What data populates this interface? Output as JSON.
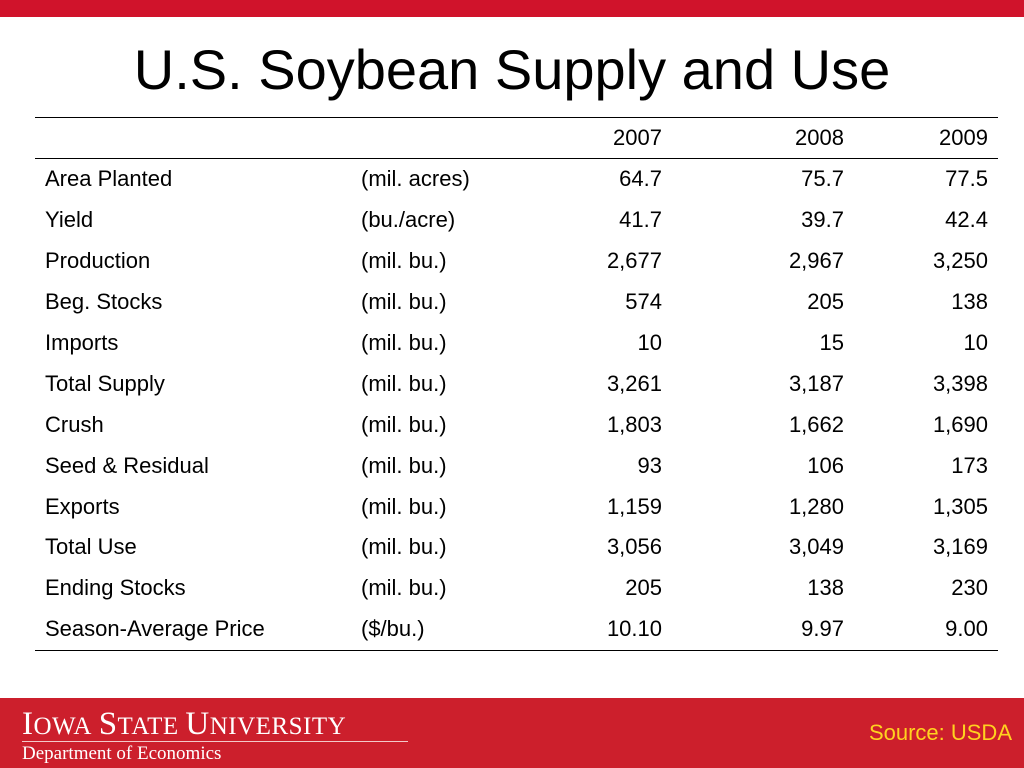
{
  "colors": {
    "brand_red": "#d0132b",
    "footer_red": "#cc1f2c",
    "source_yellow": "#ffd21f"
  },
  "slide": {
    "title": "U.S. Soybean Supply and Use"
  },
  "table": {
    "headers": [
      "",
      "",
      "2007",
      "2008",
      "2009"
    ],
    "rows": [
      {
        "label": "Area Planted",
        "unit": "(mil. acres)",
        "values": [
          "64.7",
          "75.7",
          "77.5"
        ]
      },
      {
        "label": "Yield",
        "unit": "(bu./acre)",
        "values": [
          "41.7",
          "39.7",
          "42.4"
        ]
      },
      {
        "label": "Production",
        "unit": "(mil. bu.)",
        "values": [
          "2,677",
          "2,967",
          "3,250"
        ]
      },
      {
        "label": "Beg. Stocks",
        "unit": "(mil. bu.)",
        "values": [
          "574",
          "205",
          "138"
        ]
      },
      {
        "label": "Imports",
        "unit": "(mil. bu.)",
        "values": [
          "10",
          "15",
          "10"
        ]
      },
      {
        "label": "Total Supply",
        "unit": "(mil. bu.)",
        "values": [
          "3,261",
          "3,187",
          "3,398"
        ]
      },
      {
        "label": "Crush",
        "unit": "(mil. bu.)",
        "values": [
          "1,803",
          "1,662",
          "1,690"
        ]
      },
      {
        "label": "Seed & Residual",
        "unit": "(mil. bu.)",
        "values": [
          "93",
          "106",
          "173"
        ]
      },
      {
        "label": "Exports",
        "unit": "(mil. bu.)",
        "values": [
          "1,159",
          "1,280",
          "1,305"
        ]
      },
      {
        "label": "Total Use",
        "unit": "(mil. bu.)",
        "values": [
          "3,056",
          "3,049",
          "3,169"
        ]
      },
      {
        "label": "Ending Stocks",
        "unit": "(mil. bu.)",
        "values": [
          "205",
          "138",
          "230"
        ]
      },
      {
        "label": "Season-Average Price",
        "unit": "($/bu.)",
        "values": [
          "10.10",
          "9.97",
          "9.00"
        ]
      }
    ]
  },
  "footer": {
    "logo": {
      "word1_initial": "I",
      "word1_rest": "OWA",
      "word2_initial": "S",
      "word2_rest": "TATE",
      "word3_initial": "U",
      "word3_rest": "NIVERSITY"
    },
    "department": "Department of Economics",
    "source": "Source: USDA"
  }
}
